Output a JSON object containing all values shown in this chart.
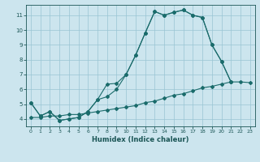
{
  "xlabel": "Humidex (Indice chaleur)",
  "xlim": [
    -0.5,
    23.5
  ],
  "ylim": [
    3.5,
    11.7
  ],
  "xticks": [
    0,
    1,
    2,
    3,
    4,
    5,
    6,
    7,
    8,
    9,
    10,
    11,
    12,
    13,
    14,
    15,
    16,
    17,
    18,
    19,
    20,
    21,
    22,
    23
  ],
  "yticks": [
    4,
    5,
    6,
    7,
    8,
    9,
    10,
    11
  ],
  "bg_color": "#cce5ee",
  "grid_color": "#99c4d4",
  "line_color": "#1a6b6b",
  "line1_x": [
    0,
    1,
    2,
    3,
    4,
    5,
    6,
    7,
    8,
    9,
    10,
    11,
    12,
    13,
    14,
    15,
    16,
    17,
    18,
    19,
    20,
    21
  ],
  "line1_y": [
    5.1,
    4.2,
    4.5,
    3.9,
    4.0,
    4.1,
    4.5,
    5.3,
    6.35,
    6.4,
    7.0,
    8.3,
    9.8,
    11.25,
    11.0,
    11.2,
    11.35,
    11.0,
    10.85,
    9.0,
    7.9,
    6.5
  ],
  "line2_x": [
    0,
    1,
    2,
    3,
    4,
    5,
    6,
    7,
    8,
    9,
    10,
    11,
    12,
    13,
    14,
    15,
    16,
    17,
    18,
    19,
    20,
    21
  ],
  "line2_y": [
    5.1,
    4.2,
    4.5,
    3.9,
    4.0,
    4.1,
    4.5,
    5.3,
    5.5,
    6.0,
    7.0,
    8.3,
    9.8,
    11.25,
    11.0,
    11.2,
    11.35,
    11.0,
    10.85,
    9.0,
    7.9,
    6.5
  ],
  "line3_x": [
    0,
    1,
    2,
    3,
    4,
    5,
    6,
    7,
    8,
    9,
    10,
    11,
    12,
    13,
    14,
    15,
    16,
    17,
    18,
    19,
    20,
    21,
    22,
    23
  ],
  "line3_y": [
    4.1,
    4.1,
    4.2,
    4.2,
    4.3,
    4.3,
    4.4,
    4.5,
    4.6,
    4.7,
    4.8,
    4.9,
    5.1,
    5.2,
    5.4,
    5.6,
    5.7,
    5.9,
    6.1,
    6.2,
    6.35,
    6.5,
    6.5,
    6.45
  ]
}
